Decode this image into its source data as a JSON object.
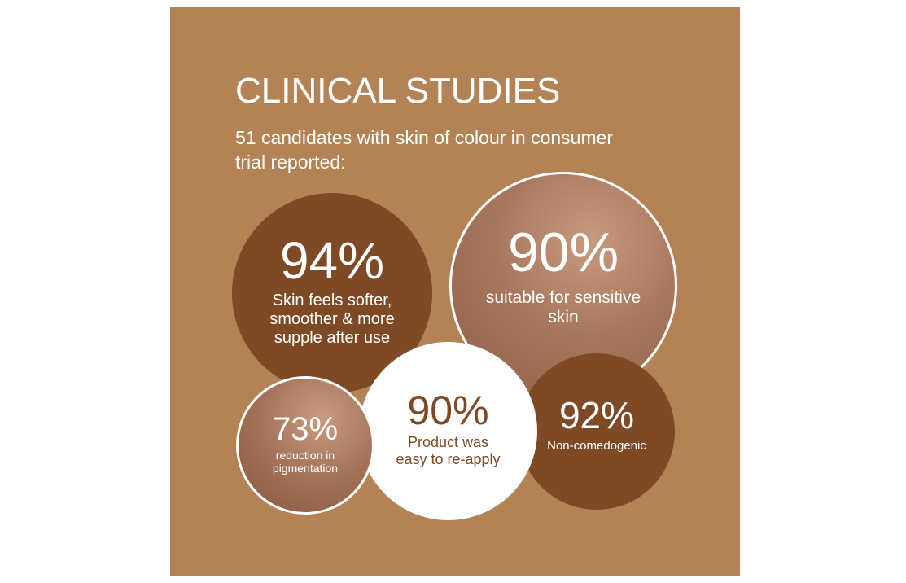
{
  "header": {
    "title": "CLINICAL STUDIES",
    "subtitle": "51 candidates with skin of colour in consumer trial reported:"
  },
  "stats": [
    {
      "value": "94%",
      "label": "Skin feels softer, smoother & more supple after use"
    },
    {
      "value": "90%",
      "label": "suitable for sensitive skin"
    },
    {
      "value": "73%",
      "label": "reduction in pigmentation"
    },
    {
      "value": "90%",
      "label": "Product was easy to re-apply"
    },
    {
      "value": "92%",
      "label": "Non-comedogenic"
    }
  ],
  "colors": {
    "background": "#b38356",
    "dark_brown": "#7e4a26",
    "white": "#ffffff"
  }
}
